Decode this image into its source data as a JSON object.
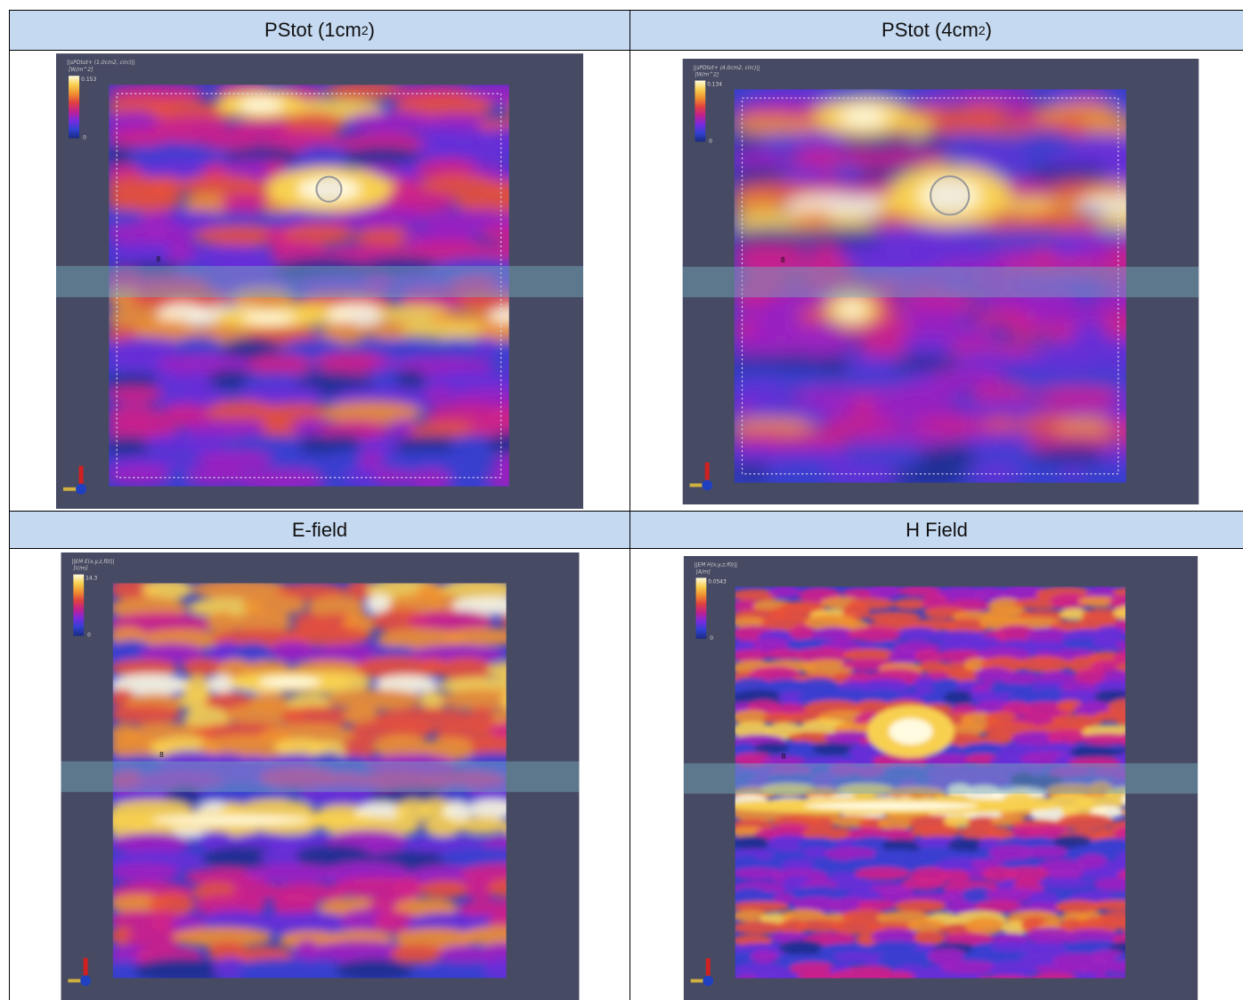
{
  "table": {
    "headers": [
      {
        "text": "PStot (1cm",
        "sup": "2",
        "close": ")"
      },
      {
        "text": "PStot (4cm",
        "sup": "2",
        "close": ")"
      },
      {
        "text": "E-field"
      },
      {
        "text": "H Field"
      }
    ],
    "panels": [
      {
        "title": "||sPDtot+ (1.0cm2, circ)||",
        "unit": "[W/m^2]",
        "max": 0.153,
        "min": 0,
        "marker": "8"
      },
      {
        "title": "||sPDtot+ (4.0cm2, circ)||",
        "unit": "[W/m^2]",
        "max": 0.134,
        "min": 0,
        "marker": "8"
      },
      {
        "title": "||EM E(x,y,z,f0)||",
        "unit": "[V/m]",
        "max": 14.3,
        "min": 0,
        "marker": "8"
      },
      {
        "title": "||EM H(x,y,z,f0)||",
        "unit": "[A/m]",
        "max": 0.0543,
        "min": 0,
        "marker": "8"
      }
    ]
  }
}
